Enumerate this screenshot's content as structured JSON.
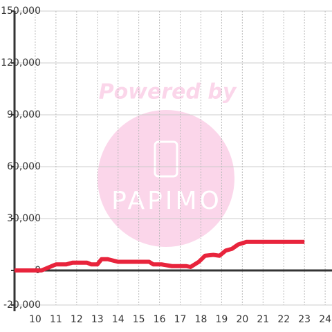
{
  "watermark": {
    "top": "Powered by",
    "logo": "PAPIMO"
  },
  "chart_data": {
    "type": "line",
    "x": [
      9.0,
      10.3,
      11.0,
      11.5,
      11.8,
      12.5,
      12.7,
      13.0,
      13.2,
      13.5,
      14.0,
      15.5,
      15.7,
      16.1,
      16.6,
      17.3,
      17.5,
      17.9,
      18.2,
      18.6,
      18.9,
      19.2,
      19.5,
      19.8,
      20.2,
      23.0
    ],
    "series": [
      {
        "color": "#e8243c",
        "values": [
          0,
          0,
          3500,
          3500,
          4500,
          4500,
          3500,
          3500,
          6500,
          6500,
          5000,
          5000,
          3500,
          3500,
          2500,
          2500,
          2000,
          5000,
          8500,
          9000,
          8500,
          11500,
          12500,
          15000,
          16500,
          16500
        ]
      }
    ],
    "xlim": [
      9,
      24.33
    ],
    "xticks": [
      10,
      11,
      12,
      13,
      14,
      15,
      16,
      17,
      18,
      19,
      20,
      21,
      22,
      23,
      24
    ],
    "ylim": [
      -20000,
      150000
    ],
    "yticks": [
      {
        "value": -20000,
        "label": "-20,000"
      },
      0,
      {
        "value": 30000,
        "label": "30,000"
      },
      {
        "value": 60000,
        "label": "60,000"
      },
      {
        "value": 90000,
        "label": "90,000"
      },
      {
        "value": 120000,
        "label": "120,000"
      },
      {
        "value": 150000,
        "label": "150,000"
      }
    ],
    "grid": true
  }
}
